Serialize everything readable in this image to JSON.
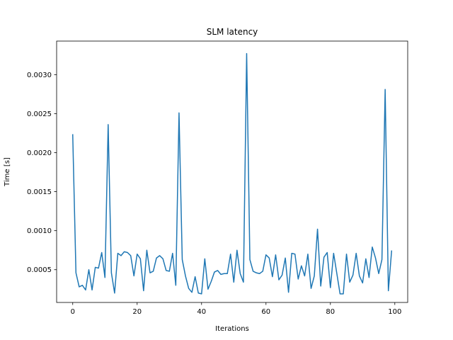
{
  "chart_data": {
    "type": "line",
    "title": "SLM latency",
    "xlabel": "Iterations",
    "ylabel": "Time [s]",
    "xlim": [
      -5,
      104
    ],
    "ylim": [
      8e-05,
      0.00343
    ],
    "grid": false,
    "xticks": [
      0,
      20,
      40,
      60,
      80,
      100
    ],
    "xtick_labels": [
      "0",
      "20",
      "40",
      "60",
      "80",
      "100"
    ],
    "yticks": [
      0.0005,
      0.001,
      0.0015,
      0.002,
      0.0025,
      0.003
    ],
    "ytick_labels": [
      "0.0005",
      "0.0010",
      "0.0015",
      "0.0020",
      "0.0025",
      "0.0030"
    ],
    "series": [
      {
        "color": "#1f77b4",
        "x": [
          0,
          1,
          2,
          3,
          4,
          5,
          6,
          7,
          8,
          9,
          10,
          11,
          12,
          13,
          14,
          15,
          16,
          17,
          18,
          19,
          20,
          21,
          22,
          23,
          24,
          25,
          26,
          27,
          28,
          29,
          30,
          31,
          32,
          33,
          34,
          35,
          36,
          37,
          38,
          39,
          40,
          41,
          42,
          43,
          44,
          45,
          46,
          47,
          48,
          49,
          50,
          51,
          52,
          53,
          54,
          55,
          56,
          57,
          58,
          59,
          60,
          61,
          62,
          63,
          64,
          65,
          66,
          67,
          68,
          69,
          70,
          71,
          72,
          73,
          74,
          75,
          76,
          77,
          78,
          79,
          80,
          81,
          82,
          83,
          84,
          85,
          86,
          87,
          88,
          89,
          90,
          91,
          92,
          93,
          94,
          95,
          96,
          97,
          98,
          99
        ],
        "values": [
          0.00223,
          0.00046,
          0.00028,
          0.0003,
          0.00024,
          0.0005,
          0.00024,
          0.00053,
          0.00052,
          0.00072,
          0.0004,
          0.00236,
          0.00046,
          0.0002,
          0.00071,
          0.00068,
          0.00073,
          0.00072,
          0.00068,
          0.00042,
          0.0007,
          0.00064,
          0.00023,
          0.00075,
          0.00046,
          0.00048,
          0.00065,
          0.00068,
          0.00064,
          0.00049,
          0.00048,
          0.00071,
          0.0003,
          0.00251,
          0.00063,
          0.00042,
          0.00026,
          0.00021,
          0.00041,
          0.0002,
          0.00019,
          0.00064,
          0.00025,
          0.00035,
          0.00047,
          0.00049,
          0.00044,
          0.00045,
          0.00045,
          0.0007,
          0.00034,
          0.00075,
          0.00045,
          0.00034,
          0.00327,
          0.00063,
          0.00048,
          0.00046,
          0.00045,
          0.00048,
          0.00069,
          0.00065,
          0.00041,
          0.00069,
          0.00037,
          0.00043,
          0.00065,
          0.00021,
          0.00071,
          0.0007,
          0.00038,
          0.00055,
          0.00042,
          0.0007,
          0.00026,
          0.00042,
          0.00102,
          0.00029,
          0.00066,
          0.00072,
          0.00027,
          0.00071,
          0.00045,
          0.00019,
          0.00019,
          0.0007,
          0.00034,
          0.00043,
          0.00071,
          0.00042,
          0.00033,
          0.00064,
          0.0004,
          0.00079,
          0.00065,
          0.00045,
          0.00063,
          0.00281,
          0.00023,
          0.00074
        ]
      }
    ]
  }
}
